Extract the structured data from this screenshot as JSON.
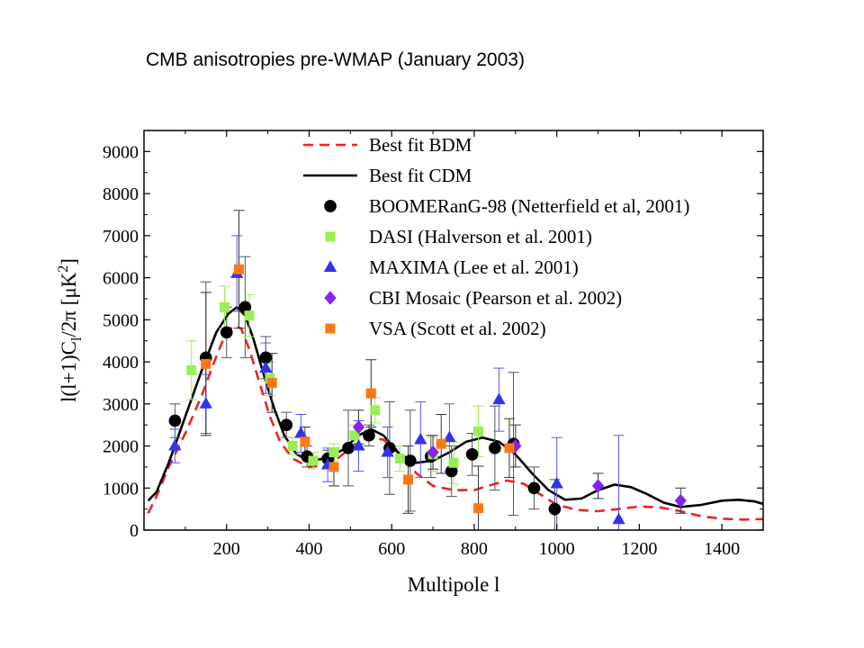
{
  "slide": {
    "title": "CMB anisotropies pre-WMAP (January 2003)"
  },
  "chart_data": {
    "type": "scatter",
    "xlabel": "Multipole l",
    "ylabel_parts": {
      "a": "l(l+1)C",
      "sub": "l",
      "b": "/2π [μK",
      "sup": "2",
      "c": "]"
    },
    "xlim": [
      0,
      1500
    ],
    "ylim": [
      0,
      9500
    ],
    "xticks": [
      "200",
      "400",
      "600",
      "800",
      "1000",
      "1200",
      "1400"
    ],
    "xtick_values": [
      200,
      400,
      600,
      800,
      1000,
      1200,
      1400
    ],
    "yticks": [
      "0",
      "1000",
      "2000",
      "3000",
      "4000",
      "5000",
      "6000",
      "7000",
      "8000",
      "9000"
    ],
    "ytick_values": [
      0,
      1000,
      2000,
      3000,
      4000,
      5000,
      6000,
      7000,
      8000,
      9000
    ],
    "legend_position": "top-right",
    "curves": [
      {
        "name": "Best fit BDM",
        "style": "dashed",
        "color": "#ee2222",
        "points": [
          [
            10,
            400
          ],
          [
            30,
            800
          ],
          [
            60,
            1500
          ],
          [
            100,
            2300
          ],
          [
            140,
            3200
          ],
          [
            170,
            4000
          ],
          [
            195,
            4600
          ],
          [
            215,
            4850
          ],
          [
            235,
            4800
          ],
          [
            255,
            4300
          ],
          [
            280,
            3500
          ],
          [
            305,
            2700
          ],
          [
            330,
            2100
          ],
          [
            360,
            1700
          ],
          [
            400,
            1500
          ],
          [
            450,
            1550
          ],
          [
            500,
            1950
          ],
          [
            540,
            2200
          ],
          [
            580,
            2150
          ],
          [
            620,
            1800
          ],
          [
            660,
            1350
          ],
          [
            700,
            1050
          ],
          [
            750,
            950
          ],
          [
            800,
            950
          ],
          [
            850,
            1100
          ],
          [
            880,
            1180
          ],
          [
            920,
            1100
          ],
          [
            960,
            850
          ],
          [
            1000,
            600
          ],
          [
            1050,
            480
          ],
          [
            1100,
            450
          ],
          [
            1150,
            500
          ],
          [
            1200,
            560
          ],
          [
            1250,
            540
          ],
          [
            1300,
            450
          ],
          [
            1350,
            330
          ],
          [
            1400,
            270
          ],
          [
            1450,
            250
          ],
          [
            1500,
            260
          ]
        ]
      },
      {
        "name": "Best fit CDM",
        "style": "solid",
        "color": "#000000",
        "points": [
          [
            10,
            700
          ],
          [
            30,
            900
          ],
          [
            60,
            1600
          ],
          [
            100,
            2700
          ],
          [
            140,
            3800
          ],
          [
            175,
            4700
          ],
          [
            205,
            5150
          ],
          [
            225,
            5300
          ],
          [
            245,
            5100
          ],
          [
            265,
            4550
          ],
          [
            290,
            3700
          ],
          [
            315,
            2900
          ],
          [
            340,
            2250
          ],
          [
            370,
            1800
          ],
          [
            400,
            1650
          ],
          [
            440,
            1700
          ],
          [
            480,
            1900
          ],
          [
            520,
            2250
          ],
          [
            550,
            2400
          ],
          [
            580,
            2250
          ],
          [
            620,
            1800
          ],
          [
            660,
            1600
          ],
          [
            700,
            1650
          ],
          [
            740,
            1850
          ],
          [
            780,
            2100
          ],
          [
            820,
            2200
          ],
          [
            860,
            2100
          ],
          [
            900,
            1800
          ],
          [
            940,
            1350
          ],
          [
            980,
            950
          ],
          [
            1020,
            720
          ],
          [
            1060,
            750
          ],
          [
            1100,
            950
          ],
          [
            1140,
            1080
          ],
          [
            1180,
            1020
          ],
          [
            1220,
            850
          ],
          [
            1260,
            650
          ],
          [
            1300,
            550
          ],
          [
            1350,
            600
          ],
          [
            1400,
            700
          ],
          [
            1440,
            720
          ],
          [
            1480,
            680
          ],
          [
            1500,
            620
          ]
        ]
      }
    ],
    "series": [
      {
        "name": "BOOMERanG-98 (Netterfield et al, 2001)",
        "marker": "circle",
        "color": "#000000",
        "err_color": "#555555",
        "points": [
          [
            75,
            2600,
            400
          ],
          [
            150,
            4100,
            1800
          ],
          [
            200,
            4700,
            600
          ],
          [
            245,
            5300,
            1200
          ],
          [
            295,
            4100,
            500
          ],
          [
            345,
            2500,
            300
          ],
          [
            395,
            1750,
            250
          ],
          [
            445,
            1700,
            200
          ],
          [
            495,
            1950,
            900
          ],
          [
            545,
            2250,
            250
          ],
          [
            595,
            1950,
            1100
          ],
          [
            645,
            1650,
            1200
          ],
          [
            695,
            1750,
            500
          ],
          [
            745,
            1400,
            600
          ],
          [
            795,
            1800,
            500
          ],
          [
            850,
            1950,
            1000
          ],
          [
            895,
            2050,
            1700
          ],
          [
            945,
            1000,
            500
          ],
          [
            995,
            500,
            700
          ]
        ]
      },
      {
        "name": "DASI (Halverson et al. 2001)",
        "marker": "square",
        "color": "#99ee55",
        "err_color": "#99ee55",
        "points": [
          [
            115,
            3800,
            700
          ],
          [
            195,
            5300,
            500
          ],
          [
            255,
            5100,
            500
          ],
          [
            305,
            3600,
            400
          ],
          [
            360,
            2000,
            200
          ],
          [
            410,
            1650,
            200
          ],
          [
            460,
            1850,
            200
          ],
          [
            510,
            2250,
            250
          ],
          [
            560,
            2850,
            300
          ],
          [
            620,
            1700,
            300
          ],
          [
            700,
            1800,
            400
          ],
          [
            750,
            1600,
            500
          ],
          [
            810,
            2350,
            600
          ]
        ]
      },
      {
        "name": "MAXIMA (Lee et al. 2001)",
        "marker": "triangle",
        "color": "#3333ee",
        "err_color": "#5555ff",
        "points": [
          [
            75,
            2000,
            400
          ],
          [
            150,
            3000,
            700
          ],
          [
            225,
            6100,
            900
          ],
          [
            295,
            3850,
            600
          ],
          [
            380,
            2300,
            450
          ],
          [
            445,
            1550,
            400
          ],
          [
            520,
            2000,
            600
          ],
          [
            590,
            1850,
            600
          ],
          [
            670,
            2150,
            900
          ],
          [
            740,
            2200,
            800
          ],
          [
            860,
            3100,
            750
          ],
          [
            1000,
            1100,
            1100
          ],
          [
            1150,
            250,
            2000
          ]
        ]
      },
      {
        "name": "CBI Mosaic (Pearson et al. 2002)",
        "marker": "diamond",
        "color": "#8822ee",
        "err_color": "#333333",
        "points": [
          [
            520,
            2450,
            400
          ],
          [
            700,
            1850,
            400
          ],
          [
            900,
            2000,
            500
          ],
          [
            1100,
            1050,
            300
          ],
          [
            1300,
            700,
            300
          ]
        ]
      },
      {
        "name": "VSA (Scott et al. 2002)",
        "marker": "square",
        "color": "#ff7711",
        "err_color": "#333333",
        "points": [
          [
            150,
            3950,
            1700
          ],
          [
            230,
            6200,
            1400
          ],
          [
            310,
            3500,
            700
          ],
          [
            390,
            2100,
            350
          ],
          [
            460,
            1500,
            450
          ],
          [
            550,
            3250,
            800
          ],
          [
            640,
            1200,
            800
          ],
          [
            720,
            2050,
            700
          ],
          [
            810,
            520,
            1000
          ],
          [
            885,
            1950,
            700
          ]
        ]
      }
    ]
  }
}
